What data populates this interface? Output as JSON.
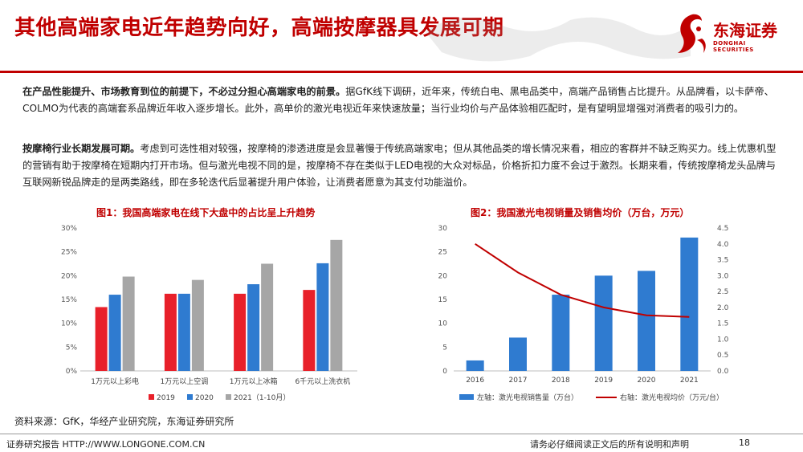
{
  "title": "其他高端家电近年趋势向好，高端按摩器具发展可期",
  "logo": {
    "name": "东海证券",
    "en": "DONGHAI SECURITIES"
  },
  "paragraph1": {
    "bold": "在产品性能提升、市场教育到位的前提下，不必过分担心高端家电的前景。",
    "text": "据GfK线下调研，近年来，传统白电、黑电品类中，高端产品销售占比提升。从品牌看，以卡萨帝、COLMO为代表的高端套系品牌近年收入逐步增长。此外，高单价的激光电视近年来快速放量；当行业均价与产品体验相匹配时，是有望明显增强对消费者的吸引力的。"
  },
  "paragraph2": {
    "bold": "按摩椅行业长期发展可期。",
    "text": "考虑到可选性相对较强，按摩椅的渗透进度是会显著慢于传统高端家电；但从其他品类的增长情况来看，相应的客群并不缺乏购买力。线上优惠机型的营销有助于按摩椅在短期内打开市场。但与激光电视不同的是，按摩椅不存在类似于LED电视的大众对标品，价格折扣力度不会过于激烈。长期来看，传统按摩椅龙头品牌与互联网新锐品牌走的是两类路线，即在多轮迭代后显著提升用户体验，让消费者愿意为其支付功能溢价。"
  },
  "chart_data": [
    {
      "type": "bar",
      "title": "图1：我国高端家电在线下大盘中的占比呈上升趋势",
      "categories": [
        "1万元以上彩电",
        "1万元以上空调",
        "1万元以上冰箱",
        "6千元以上洗衣机"
      ],
      "series": [
        {
          "name": "2019",
          "color": "#e8202a",
          "values": [
            13.4,
            16.2,
            16.2,
            17.0
          ]
        },
        {
          "name": "2020",
          "color": "#2f7bd0",
          "values": [
            16.0,
            16.2,
            18.2,
            22.6
          ]
        },
        {
          "name": "2021（1-10月）",
          "color": "#a6a6a6",
          "values": [
            19.8,
            19.1,
            22.5,
            27.5
          ]
        }
      ],
      "yticks": [
        "0%",
        "5%",
        "10%",
        "15%",
        "20%",
        "25%",
        "30%"
      ],
      "ylim": [
        0,
        30
      ],
      "legend": "bottom"
    },
    {
      "type": "bar+line",
      "title": "图2：我国激光电视销量及销售均价（万台，万元）",
      "categories": [
        "2016",
        "2017",
        "2018",
        "2019",
        "2020",
        "2021"
      ],
      "bar_series": {
        "name": "左轴：激光电视销售量（万台）",
        "color": "#2f7bd0",
        "values": [
          2.2,
          7.0,
          16.0,
          20.0,
          21.0,
          28.0
        ]
      },
      "line_series": {
        "name": "右轴：激光电视均价（万元/台）",
        "color": "#c00000",
        "values": [
          4.0,
          3.1,
          2.4,
          2.0,
          1.75,
          1.7
        ]
      },
      "yleft_ticks": [
        "0",
        "5",
        "10",
        "15",
        "20",
        "25",
        "30"
      ],
      "yleft_lim": [
        0,
        30
      ],
      "yright_ticks": [
        "0.0",
        "0.5",
        "1.0",
        "1.5",
        "2.0",
        "2.5",
        "3.0",
        "3.5",
        "4.0",
        "4.5"
      ],
      "yright_lim": [
        0,
        4.5
      ],
      "legend": "bottom"
    }
  ],
  "source": "资料来源：GfK，华经产业研究院，东海证券研究所",
  "footer": {
    "left": "证券研究报告 HTTP://WWW.LONGONE.COM.CN",
    "right": "请务必仔细阅读正文后的所有说明和声明",
    "page": "18"
  }
}
